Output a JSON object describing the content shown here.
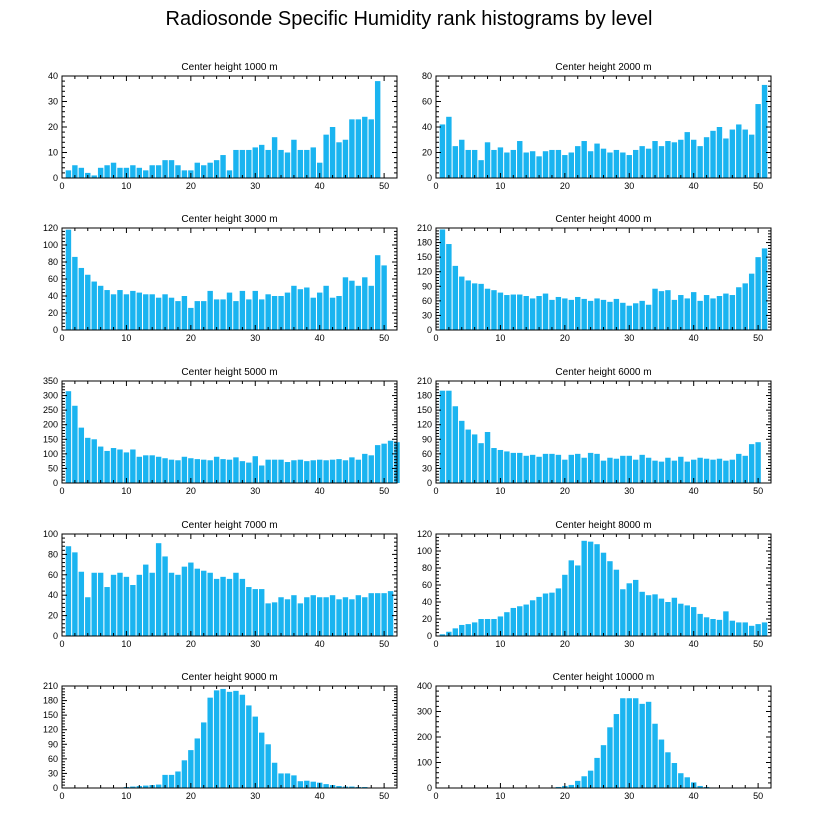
{
  "title": "Radiosonde Specific Humidity rank histograms by level",
  "chart_data": [
    {
      "type": "bar",
      "title": "Center height 1000 m",
      "xlim": [
        0,
        52
      ],
      "ylim": [
        0,
        40
      ],
      "xticks": [
        0,
        10,
        20,
        30,
        40,
        50
      ],
      "yticks": [
        0,
        10,
        20,
        30,
        40
      ],
      "values": [
        3,
        5,
        4,
        2,
        1,
        4,
        5,
        6,
        4,
        4,
        5,
        4,
        3,
        5,
        5,
        7,
        7,
        5,
        3,
        3,
        6,
        5,
        6,
        7,
        9,
        3,
        11,
        11,
        11,
        12,
        13,
        11,
        16,
        11,
        10,
        15,
        11,
        11,
        12,
        6,
        17,
        20,
        14,
        15,
        23,
        23,
        24,
        23,
        38
      ]
    },
    {
      "type": "bar",
      "title": "Center height 2000 m",
      "xlim": [
        0,
        52
      ],
      "ylim": [
        0,
        80
      ],
      "xticks": [
        0,
        10,
        20,
        30,
        40,
        50
      ],
      "yticks": [
        0,
        20,
        40,
        60,
        80
      ],
      "values": [
        42,
        48,
        25,
        30,
        22,
        22,
        14,
        28,
        22,
        24,
        20,
        22,
        29,
        20,
        21,
        17,
        21,
        22,
        22,
        18,
        20,
        25,
        29,
        21,
        27,
        23,
        20,
        22,
        20,
        18,
        22,
        25,
        23,
        29,
        25,
        29,
        28,
        30,
        36,
        30,
        25,
        32,
        37,
        40,
        31,
        38,
        42,
        38,
        34,
        58,
        73
      ]
    },
    {
      "type": "bar",
      "title": "Center height 3000 m",
      "xlim": [
        0,
        52
      ],
      "ylim": [
        0,
        120
      ],
      "xticks": [
        0,
        10,
        20,
        30,
        40,
        50
      ],
      "yticks": [
        0,
        20,
        40,
        60,
        80,
        100,
        120
      ],
      "values": [
        118,
        86,
        73,
        65,
        57,
        52,
        47,
        42,
        47,
        42,
        46,
        44,
        42,
        42,
        38,
        42,
        38,
        34,
        40,
        26,
        34,
        34,
        46,
        36,
        36,
        44,
        34,
        46,
        36,
        46,
        36,
        42,
        40,
        40,
        44,
        52,
        48,
        50,
        38,
        44,
        52,
        38,
        40,
        62,
        58,
        52,
        62,
        52,
        88,
        76
      ]
    },
    {
      "type": "bar",
      "title": "Center height 4000 m",
      "xlim": [
        0,
        52
      ],
      "ylim": [
        0,
        210
      ],
      "xticks": [
        0,
        10,
        20,
        30,
        40,
        50
      ],
      "yticks": [
        0,
        30,
        60,
        90,
        120,
        150,
        180,
        210
      ],
      "values": [
        207,
        177,
        132,
        110,
        102,
        96,
        95,
        85,
        82,
        77,
        72,
        73,
        73,
        70,
        65,
        70,
        75,
        62,
        68,
        65,
        62,
        68,
        64,
        60,
        65,
        62,
        58,
        64,
        56,
        50,
        55,
        60,
        52,
        85,
        80,
        82,
        62,
        72,
        65,
        78,
        60,
        72,
        65,
        70,
        75,
        72,
        88,
        96,
        116,
        150,
        168
      ]
    },
    {
      "type": "bar",
      "title": "Center height 5000 m",
      "xlim": [
        0,
        52
      ],
      "ylim": [
        0,
        350
      ],
      "xticks": [
        0,
        10,
        20,
        30,
        40,
        50
      ],
      "yticks": [
        0,
        50,
        100,
        150,
        200,
        250,
        300,
        350
      ],
      "values": [
        315,
        265,
        190,
        155,
        150,
        125,
        110,
        120,
        115,
        105,
        115,
        90,
        95,
        95,
        90,
        85,
        80,
        78,
        90,
        85,
        82,
        80,
        78,
        90,
        82,
        80,
        88,
        75,
        70,
        92,
        60,
        80,
        80,
        80,
        72,
        78,
        80,
        75,
        78,
        80,
        78,
        80,
        82,
        78,
        88,
        80,
        100,
        95,
        130,
        135,
        145,
        140
      ]
    },
    {
      "type": "bar",
      "title": "Center height 6000 m",
      "xlim": [
        0,
        52
      ],
      "ylim": [
        0,
        210
      ],
      "xticks": [
        0,
        10,
        20,
        30,
        40,
        50
      ],
      "yticks": [
        0,
        30,
        60,
        90,
        120,
        150,
        180,
        210
      ],
      "values": [
        190,
        190,
        158,
        128,
        110,
        100,
        82,
        105,
        72,
        68,
        65,
        62,
        62,
        56,
        58,
        54,
        60,
        60,
        58,
        48,
        58,
        60,
        52,
        62,
        60,
        46,
        52,
        50,
        56,
        56,
        48,
        58,
        52,
        46,
        44,
        52,
        46,
        54,
        44,
        48,
        52,
        50,
        48,
        50,
        46,
        48,
        60,
        56,
        80,
        84
      ]
    },
    {
      "type": "bar",
      "title": "Center height 7000 m",
      "xlim": [
        0,
        52
      ],
      "ylim": [
        0,
        100
      ],
      "xticks": [
        0,
        10,
        20,
        30,
        40,
        50
      ],
      "yticks": [
        0,
        20,
        40,
        60,
        80,
        100
      ],
      "values": [
        88,
        82,
        63,
        38,
        62,
        62,
        48,
        60,
        62,
        58,
        50,
        60,
        70,
        62,
        91,
        78,
        62,
        60,
        68,
        72,
        66,
        64,
        62,
        56,
        58,
        56,
        62,
        56,
        48,
        46,
        46,
        32,
        33,
        38,
        36,
        40,
        32,
        38,
        40,
        38,
        38,
        40,
        36,
        38,
        36,
        40,
        38,
        42,
        42,
        42,
        44
      ]
    },
    {
      "type": "bar",
      "title": "Center height 8000 m",
      "xlim": [
        0,
        52
      ],
      "ylim": [
        0,
        120
      ],
      "xticks": [
        0,
        10,
        20,
        30,
        40,
        50
      ],
      "yticks": [
        0,
        20,
        40,
        60,
        80,
        100,
        120
      ],
      "values": [
        2,
        5,
        9,
        13,
        14,
        16,
        20,
        20,
        20,
        23,
        28,
        33,
        35,
        37,
        42,
        46,
        50,
        51,
        56,
        72,
        89,
        83,
        112,
        111,
        108,
        98,
        88,
        78,
        55,
        62,
        66,
        52,
        48,
        49,
        44,
        40,
        45,
        38,
        36,
        34,
        26,
        22,
        20,
        19,
        29,
        18,
        16,
        16,
        12,
        14,
        16
      ]
    },
    {
      "type": "bar",
      "title": "Center height 9000 m",
      "xlim": [
        0,
        52
      ],
      "ylim": [
        0,
        210
      ],
      "xticks": [
        0,
        10,
        20,
        30,
        40,
        50
      ],
      "yticks": [
        0,
        30,
        60,
        90,
        120,
        150,
        180,
        210
      ],
      "values": [
        0,
        0,
        0,
        0,
        0,
        0,
        0,
        1,
        1,
        2,
        3,
        4,
        5,
        6,
        7,
        27,
        27,
        34,
        57,
        78,
        102,
        135,
        186,
        201,
        204,
        198,
        200,
        192,
        170,
        147,
        114,
        90,
        52,
        30,
        30,
        26,
        14,
        15,
        13,
        11,
        8,
        6,
        4,
        3,
        3,
        2,
        2,
        1,
        1,
        0,
        0
      ]
    },
    {
      "type": "bar",
      "title": "Center height 10000 m",
      "xlim": [
        0,
        52
      ],
      "ylim": [
        0,
        400
      ],
      "xticks": [
        0,
        10,
        20,
        30,
        40,
        50
      ],
      "yticks": [
        0,
        100,
        200,
        300,
        400
      ],
      "values": [
        0,
        0,
        0,
        0,
        0,
        0,
        0,
        0,
        0,
        0,
        0,
        0,
        0,
        0,
        0,
        0,
        0,
        2,
        4,
        8,
        12,
        28,
        46,
        68,
        118,
        168,
        238,
        290,
        352,
        352,
        352,
        330,
        338,
        252,
        190,
        140,
        98,
        58,
        42,
        22,
        8,
        4,
        2,
        1,
        1,
        0,
        0,
        0,
        0,
        0,
        0
      ]
    }
  ]
}
